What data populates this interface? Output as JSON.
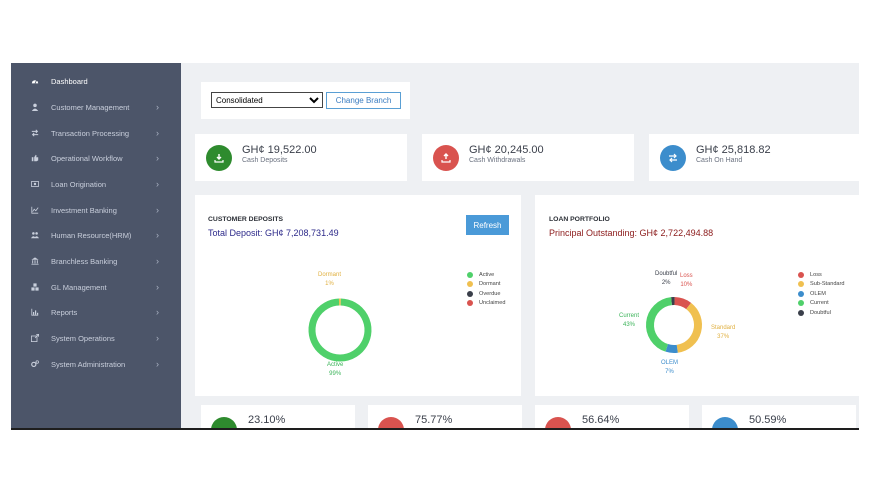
{
  "sidebar": {
    "items": [
      {
        "label": "Dashboard",
        "icon": "dashboard-icon",
        "chevron": false
      },
      {
        "label": "Customer Management",
        "icon": "user-icon",
        "chevron": true
      },
      {
        "label": "Transaction Processing",
        "icon": "exchange-icon",
        "chevron": true
      },
      {
        "label": "Operational Workflow",
        "icon": "thumbs-up-icon",
        "chevron": true
      },
      {
        "label": "Loan Origination",
        "icon": "money-icon",
        "chevron": true
      },
      {
        "label": "Investment Banking",
        "icon": "line-chart-icon",
        "chevron": true
      },
      {
        "label": "Human Resource(HRM)",
        "icon": "users-icon",
        "chevron": true
      },
      {
        "label": "Branchless Banking",
        "icon": "bank-icon",
        "chevron": true
      },
      {
        "label": "GL Management",
        "icon": "cubes-icon",
        "chevron": true
      },
      {
        "label": "Reports",
        "icon": "bar-chart-icon",
        "chevron": true
      },
      {
        "label": "System Operations",
        "icon": "external-link-icon",
        "chevron": true
      },
      {
        "label": "System Administration",
        "icon": "cogs-icon",
        "chevron": true
      }
    ],
    "chevron_glyph": "›"
  },
  "branch": {
    "selected": "Consolidated",
    "button_label": "Change Branch"
  },
  "stats": [
    {
      "value": "GH¢ 19,522.00",
      "label": "Cash Deposits",
      "color": "#2e8b2e",
      "icon": "download-icon"
    },
    {
      "value": "GH¢ 20,245.00",
      "label": "Cash Withdrawals",
      "color": "#d9534f",
      "icon": "upload-icon"
    },
    {
      "value": "GH¢ 25,818.82",
      "label": "Cash On Hand",
      "color": "#3c8dcc",
      "icon": "exchange-icon"
    }
  ],
  "deposits": {
    "title": "CUSTOMER DEPOSITS",
    "subtitle": "Total Deposit: GH¢ 7,208,731.49",
    "subtitle_color": "#2d2a8a",
    "refresh_label": "Refresh",
    "legend": [
      {
        "label": "Active",
        "color": "#4fd06a"
      },
      {
        "label": "Dormant",
        "color": "#f0c050"
      },
      {
        "label": "Overdue",
        "color": "#3a3f4a"
      },
      {
        "label": "Unclaimed",
        "color": "#d9534f"
      }
    ],
    "labels": {
      "dormant_name": "Dormant",
      "dormant_pct": "1%",
      "active_name": "Active",
      "active_pct": "99%"
    }
  },
  "loans": {
    "title": "LOAN PORTFOLIO",
    "subtitle": "Principal Outstanding: GH¢ 2,722,494.88",
    "subtitle_color": "#8b1a1a",
    "legend": [
      {
        "label": "Loss",
        "color": "#d9534f"
      },
      {
        "label": "Sub-Standard",
        "color": "#f0c050"
      },
      {
        "label": "OLEM",
        "color": "#3c8dcc"
      },
      {
        "label": "Current",
        "color": "#4fd06a"
      },
      {
        "label": "Doubtful",
        "color": "#3a3f4a"
      }
    ],
    "labels": {
      "doubtful_name": "Doubtful",
      "doubtful_pct": "2%",
      "loss_name": "Loss",
      "loss_pct": "10%",
      "standard_name": "Standard",
      "standard_pct": "37%",
      "olem_name": "OLEM",
      "olem_pct": "7%",
      "current_name": "Current",
      "current_pct": "43%"
    }
  },
  "chart_data": [
    {
      "type": "pie",
      "title": "CUSTOMER DEPOSITS",
      "categories": [
        "Active",
        "Dormant",
        "Overdue",
        "Unclaimed"
      ],
      "values": [
        99,
        1,
        0,
        0
      ],
      "colors": [
        "#4fd06a",
        "#f0c050",
        "#3a3f4a",
        "#d9534f"
      ],
      "legend": "right"
    },
    {
      "type": "pie",
      "title": "LOAN PORTFOLIO",
      "categories": [
        "Loss",
        "Sub-Standard",
        "OLEM",
        "Current",
        "Doubtful"
      ],
      "values": [
        10,
        37,
        7,
        43,
        2
      ],
      "colors": [
        "#d9534f",
        "#f0c050",
        "#3c8dcc",
        "#4fd06a",
        "#3a3f4a"
      ],
      "legend": "right"
    }
  ],
  "kpis": [
    {
      "value": "23.10%",
      "color": "#2e8b2e"
    },
    {
      "value": "75.77%",
      "color": "#d9534f"
    },
    {
      "value": "56.64%",
      "color": "#d9534f"
    },
    {
      "value": "50.59%",
      "color": "#3c8dcc"
    }
  ]
}
